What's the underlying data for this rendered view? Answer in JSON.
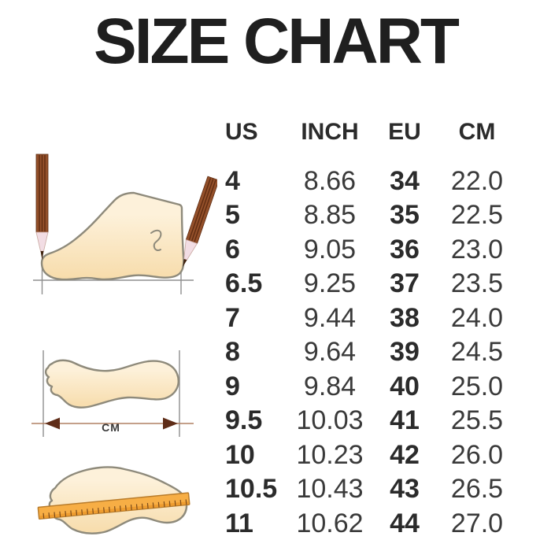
{
  "title": "SIZE CHART",
  "table": {
    "headers": [
      "US",
      "INCH",
      "EU",
      "CM"
    ],
    "rows": [
      [
        "4",
        "8.66",
        "34",
        "22.0"
      ],
      [
        "5",
        "8.85",
        "35",
        "22.5"
      ],
      [
        "6",
        "9.05",
        "36",
        "23.0"
      ],
      [
        "6.5",
        "9.25",
        "37",
        "23.5"
      ],
      [
        "7",
        "9.44",
        "38",
        "24.0"
      ],
      [
        "8",
        "9.64",
        "39",
        "24.5"
      ],
      [
        "9",
        "9.84",
        "40",
        "25.0"
      ],
      [
        "9.5",
        "10.03",
        "41",
        "25.5"
      ],
      [
        "10",
        "10.23",
        "42",
        "26.0"
      ],
      [
        "10.5",
        "10.43",
        "43",
        "26.5"
      ],
      [
        "11",
        "10.62",
        "44",
        "27.0"
      ]
    ]
  },
  "illustrations": {
    "length_label": "CM",
    "items": [
      "foot-side-view-measured-with-two-pencils",
      "footprint-top-view-with-length-arrow",
      "footprint-top-view-with-ruler"
    ]
  },
  "colors": {
    "title-ink": "#1f1f1f",
    "table-ink-bold": "#2b2b2b",
    "table-ink-regular": "#3a3a3a",
    "foot-fill-light": "#fdf1da",
    "foot-fill-shade": "#f7dcab",
    "foot-outline": "#8e8a7b",
    "pencil-brown": "#94502a",
    "pencil-stripe": "#5e2c12",
    "pencil-wood": "#f2dde4",
    "pencil-lead": "#40230f",
    "ruler-orange": "#f7ae45",
    "ruler-shade": "#ee9c2f",
    "ruler-edge": "#b97c2b",
    "arrow-head": "#5f2d18",
    "arrow-line": "#b08063",
    "guide-line": "#8f8f8f"
  }
}
